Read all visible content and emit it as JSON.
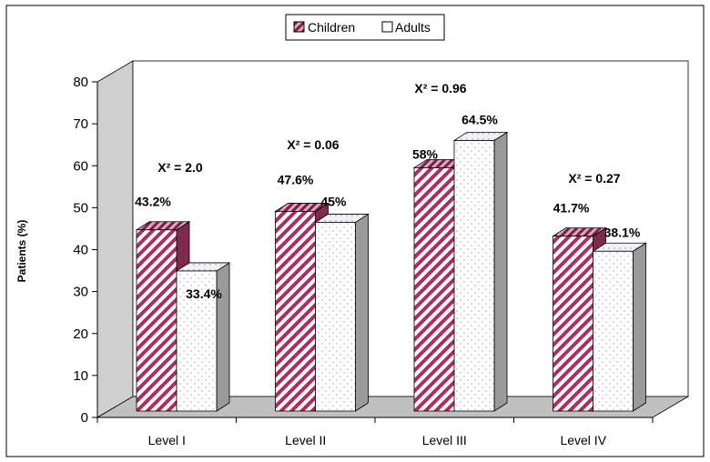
{
  "chart_data": {
    "type": "bar",
    "categories": [
      "Level I",
      "Level II",
      "Level III",
      "Level IV"
    ],
    "series": [
      {
        "name": "Children",
        "values": [
          43.2,
          47.6,
          58,
          41.7
        ],
        "labels": [
          "43.2%",
          "47.6%",
          "58%",
          "41.7%"
        ]
      },
      {
        "name": "Adults",
        "values": [
          33.4,
          45,
          64.5,
          38.1
        ],
        "labels": [
          "33.4%",
          "45%",
          "64.5%",
          "38.1%"
        ]
      }
    ],
    "annotations": [
      {
        "category": "Level I",
        "text": "X² = 2.0"
      },
      {
        "category": "Level II",
        "text": "X² = 0.06"
      },
      {
        "category": "Level III",
        "text": "X² = 0.96"
      },
      {
        "category": "Level IV",
        "text": "X² = 0.27"
      }
    ],
    "title": "",
    "xlabel": "",
    "ylabel": "Patients (%)",
    "ylim": [
      0,
      80
    ],
    "yticks": [
      0,
      10,
      20,
      30,
      40,
      50,
      60,
      70,
      80
    ],
    "legend_position": "top-center",
    "grid": false,
    "colors": {
      "children": "#a8305e",
      "adults": "#a0a0c0",
      "wall": "#cfcfcf",
      "floor": "#c0c0c0",
      "side": "#9a9a9a"
    }
  }
}
